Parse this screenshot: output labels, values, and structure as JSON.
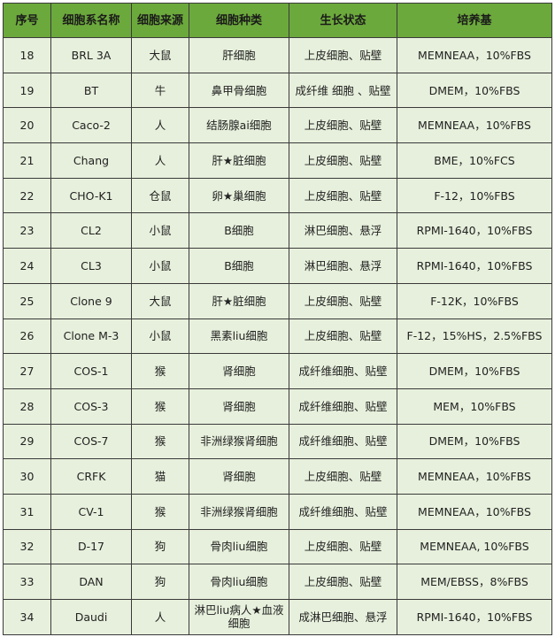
{
  "colors": {
    "header_bg": "#6ca93c",
    "body_bg": "#e7f0dc",
    "border": "#3a3a3a"
  },
  "headers": [
    "序号",
    "细胞系名称",
    "细胞来源",
    "细胞种类",
    "生长状态",
    "培养基"
  ],
  "rows": [
    [
      "18",
      "BRL 3A",
      "大鼠",
      "肝细胞",
      "上皮细胞、贴壁",
      "MEMNEAA，10%FBS"
    ],
    [
      "19",
      "BT",
      "牛",
      "鼻甲骨细胞",
      "成纤维 细胞 、贴壁",
      "DMEM，10%FBS"
    ],
    [
      "20",
      "Caco-2",
      "人",
      "结肠腺ai细胞",
      "上皮细胞、贴壁",
      "MEMNEAA，10%FBS"
    ],
    [
      "21",
      "Chang",
      "人",
      "肝★脏细胞",
      "上皮细胞、贴壁",
      "BME，10%FCS"
    ],
    [
      "22",
      "CHO-K1",
      "仓鼠",
      "卵★巢细胞",
      "上皮细胞、贴壁",
      "F-12，10%FBS"
    ],
    [
      "23",
      "CL2",
      "小鼠",
      "B细胞",
      "淋巴细胞、悬浮",
      "RPMI-1640，10%FBS"
    ],
    [
      "24",
      "CL3",
      "小鼠",
      "B细胞",
      "淋巴细胞、悬浮",
      "RPMI-1640，10%FBS"
    ],
    [
      "25",
      "Clone 9",
      "大鼠",
      "肝★脏细胞",
      "上皮细胞、贴壁",
      "F-12K，10%FBS"
    ],
    [
      "26",
      "Clone M-3",
      "小鼠",
      "黑素liu细胞",
      "上皮细胞、贴壁",
      "F-12，15%HS，2.5%FBS"
    ],
    [
      "27",
      "COS-1",
      "猴",
      "肾细胞",
      "成纤维细胞、贴壁",
      "DMEM，10%FBS"
    ],
    [
      "28",
      "COS-3",
      "猴",
      "肾细胞",
      "成纤维细胞、贴壁",
      "MEM，10%FBS"
    ],
    [
      "29",
      "COS-7",
      "猴",
      "非洲绿猴肾细胞",
      "成纤维细胞、贴壁",
      "DMEM，10%FBS"
    ],
    [
      "30",
      "CRFK",
      "猫",
      "肾细胞",
      "上皮细胞、贴壁",
      "MEMNEAA，10%FBS"
    ],
    [
      "31",
      "CV-1",
      "猴",
      "非洲绿猴肾细胞",
      "成纤维细胞、贴壁",
      "MEMNEAA，10%FBS"
    ],
    [
      "32",
      "D-17",
      "狗",
      "骨肉liu细胞",
      "上皮细胞、贴壁",
      "MEMNEAA, 10%FBS"
    ],
    [
      "33",
      "DAN",
      "狗",
      "骨肉liu细胞",
      "上皮细胞、贴壁",
      "MEM/EBSS，8%FBS"
    ],
    [
      "34",
      "Daudi",
      "人",
      "淋巴liu病人★血液细胞",
      "成淋巴细胞、悬浮",
      "RPMI-1640，10%FBS"
    ]
  ]
}
